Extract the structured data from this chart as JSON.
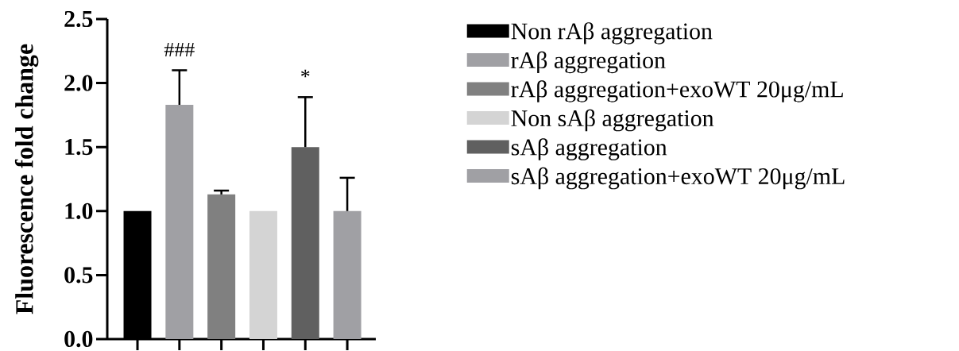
{
  "chart_data": {
    "type": "bar",
    "ylabel": "Fluorescence fold change",
    "categories": [
      null,
      null,
      null,
      null,
      null,
      null
    ],
    "series": [
      {
        "name": "Non rAβ aggregation",
        "color": "#000000",
        "values": [
          1.0,
          null,
          null,
          null,
          null,
          null
        ]
      },
      {
        "name": "rAβ aggregation",
        "color": "#a0a0a4",
        "values": [
          null,
          1.83,
          null,
          null,
          null,
          null
        ],
        "errors": [
          null,
          [
            1.83,
            2.1
          ],
          null,
          null,
          null,
          null
        ]
      },
      {
        "name": "rAβ aggregation+exoWT 20μg/mL",
        "color": "#808080",
        "values": [
          null,
          null,
          1.13,
          null,
          null,
          null
        ],
        "errors": [
          null,
          null,
          [
            1.13,
            1.16
          ],
          null,
          null,
          null
        ]
      },
      {
        "name": "Non sAβ aggregation",
        "color": "#d4d4d4",
        "values": [
          null,
          null,
          null,
          1.0,
          null,
          null
        ]
      },
      {
        "name": "sAβ aggregation",
        "color": "#606060",
        "values": [
          null,
          null,
          null,
          null,
          1.5,
          null
        ],
        "errors": [
          null,
          null,
          null,
          null,
          [
            1.5,
            1.89
          ],
          null
        ]
      },
      {
        "name": "sAβ aggregation+exoWT 20μg/mL",
        "color": "#a0a0a4",
        "values": [
          null,
          null,
          null,
          null,
          null,
          1.0
        ],
        "errors": [
          null,
          null,
          null,
          null,
          null,
          [
            1.0,
            1.26
          ]
        ]
      }
    ],
    "annotations": [
      "###",
      "*"
    ],
    "ylim": [
      0,
      2.5
    ],
    "yticks": [
      {
        "value": 0,
        "label": "0.0"
      },
      0.5,
      {
        "value": 1,
        "label": "1.0"
      },
      1.5,
      {
        "value": 2,
        "label": "2.0"
      },
      2.5
    ],
    "tick_labels": "y",
    "grid": false,
    "legend": "right"
  }
}
